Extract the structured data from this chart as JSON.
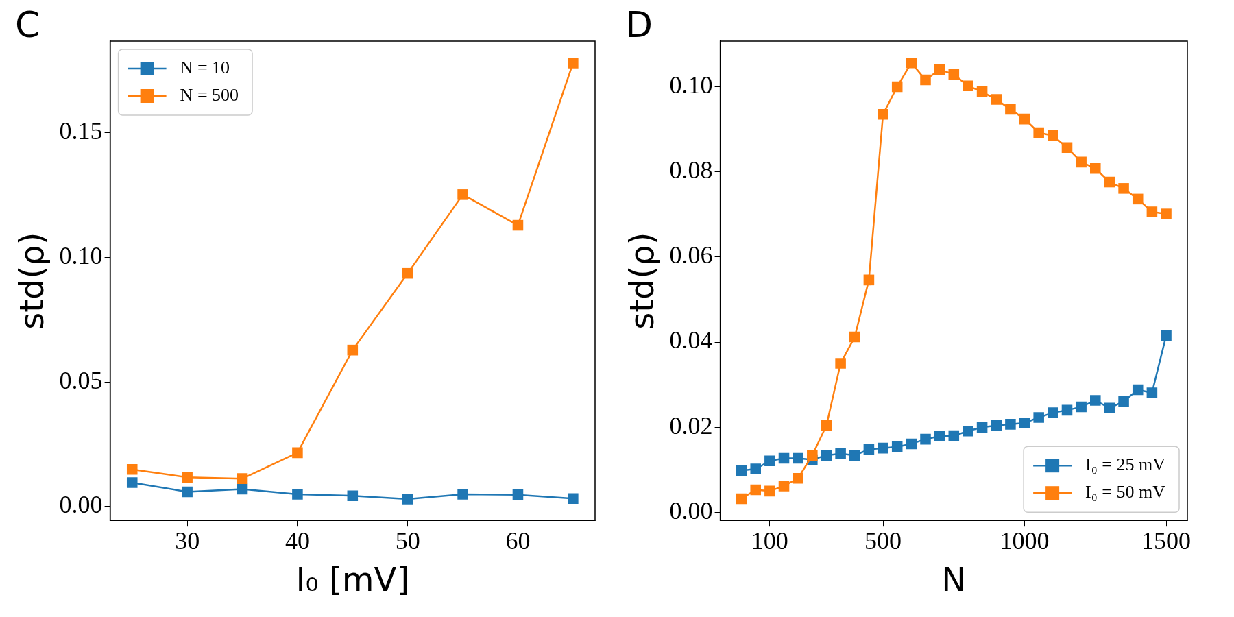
{
  "chart_data": [
    {
      "type": "line",
      "title": "C",
      "xlabel": "I₀ [mV]",
      "ylabel": "std(ρ)",
      "x": [
        25,
        30,
        35,
        40,
        45,
        50,
        55,
        60,
        65
      ],
      "xlim": [
        23,
        67
      ],
      "xticks": [
        30,
        40,
        50,
        60
      ],
      "ylim": [
        -0.0056,
        0.1868
      ],
      "yticks": [
        {
          "value": 0,
          "label": "0.00"
        },
        {
          "value": 0.05,
          "label": "0.05"
        },
        {
          "value": 0.1,
          "label": "0.10"
        },
        {
          "value": 0.15,
          "label": "0.15"
        }
      ],
      "marker": "square",
      "line_style": "solid",
      "grid": false,
      "legend": "top left",
      "series": [
        {
          "name": "N = 10",
          "color": "#1f77b4",
          "values": [
            0.0096,
            0.0059,
            0.007,
            0.0049,
            0.0043,
            0.003,
            0.0049,
            0.0047,
            0.0032
          ]
        },
        {
          "name": "N = 500",
          "color": "#ff7f0e",
          "values": [
            0.0149,
            0.0117,
            0.0112,
            0.0216,
            0.0628,
            0.0936,
            0.1252,
            0.1129,
            0.178
          ]
        }
      ]
    },
    {
      "type": "line",
      "title": "D",
      "xlabel": "N",
      "ylabel": "std(ρ)",
      "categories": [
        null,
        null,
        "100",
        null,
        null,
        null,
        null,
        null,
        null,
        null,
        "500",
        null,
        null,
        null,
        null,
        null,
        null,
        null,
        null,
        null,
        "1000",
        null,
        null,
        null,
        null,
        null,
        null,
        null,
        null,
        null,
        "1500"
      ],
      "ylim": [
        -0.0019,
        0.1107
      ],
      "yticks": [
        {
          "value": 0,
          "label": "0.00"
        },
        {
          "value": 0.02,
          "label": "0.02"
        },
        {
          "value": 0.04,
          "label": "0.04"
        },
        {
          "value": 0.06,
          "label": "0.06"
        },
        {
          "value": 0.08,
          "label": "0.08"
        },
        {
          "value": 0.1,
          "label": "0.10"
        }
      ],
      "marker": "square",
      "line_style": "solid",
      "grid": false,
      "legend": "bottom right",
      "series": [
        {
          "name": "I₀ = 25 mV",
          "color": "#1f77b4",
          "values": [
            0.0098,
            0.0102,
            0.0121,
            0.0127,
            0.0127,
            0.0124,
            0.0134,
            0.0138,
            0.0134,
            0.0148,
            0.0151,
            0.0154,
            0.0161,
            0.0172,
            0.0179,
            0.018,
            0.0191,
            0.02,
            0.0204,
            0.0207,
            0.021,
            0.0223,
            0.0234,
            0.024,
            0.0248,
            0.0263,
            0.0245,
            0.0261,
            0.0288,
            0.0281,
            0.0415
          ]
        },
        {
          "name": "I₀ = 50 mV",
          "color": "#ff7f0e",
          "values": [
            0.0032,
            0.0053,
            0.005,
            0.0062,
            0.008,
            0.0134,
            0.0204,
            0.035,
            0.0412,
            0.0546,
            0.0935,
            0.1,
            0.1056,
            0.1016,
            0.104,
            0.1029,
            0.1002,
            0.0988,
            0.097,
            0.0947,
            0.0924,
            0.0892,
            0.0885,
            0.0857,
            0.0823,
            0.0808,
            0.0776,
            0.0761,
            0.0736,
            0.0706,
            0.0701
          ]
        }
      ]
    }
  ]
}
